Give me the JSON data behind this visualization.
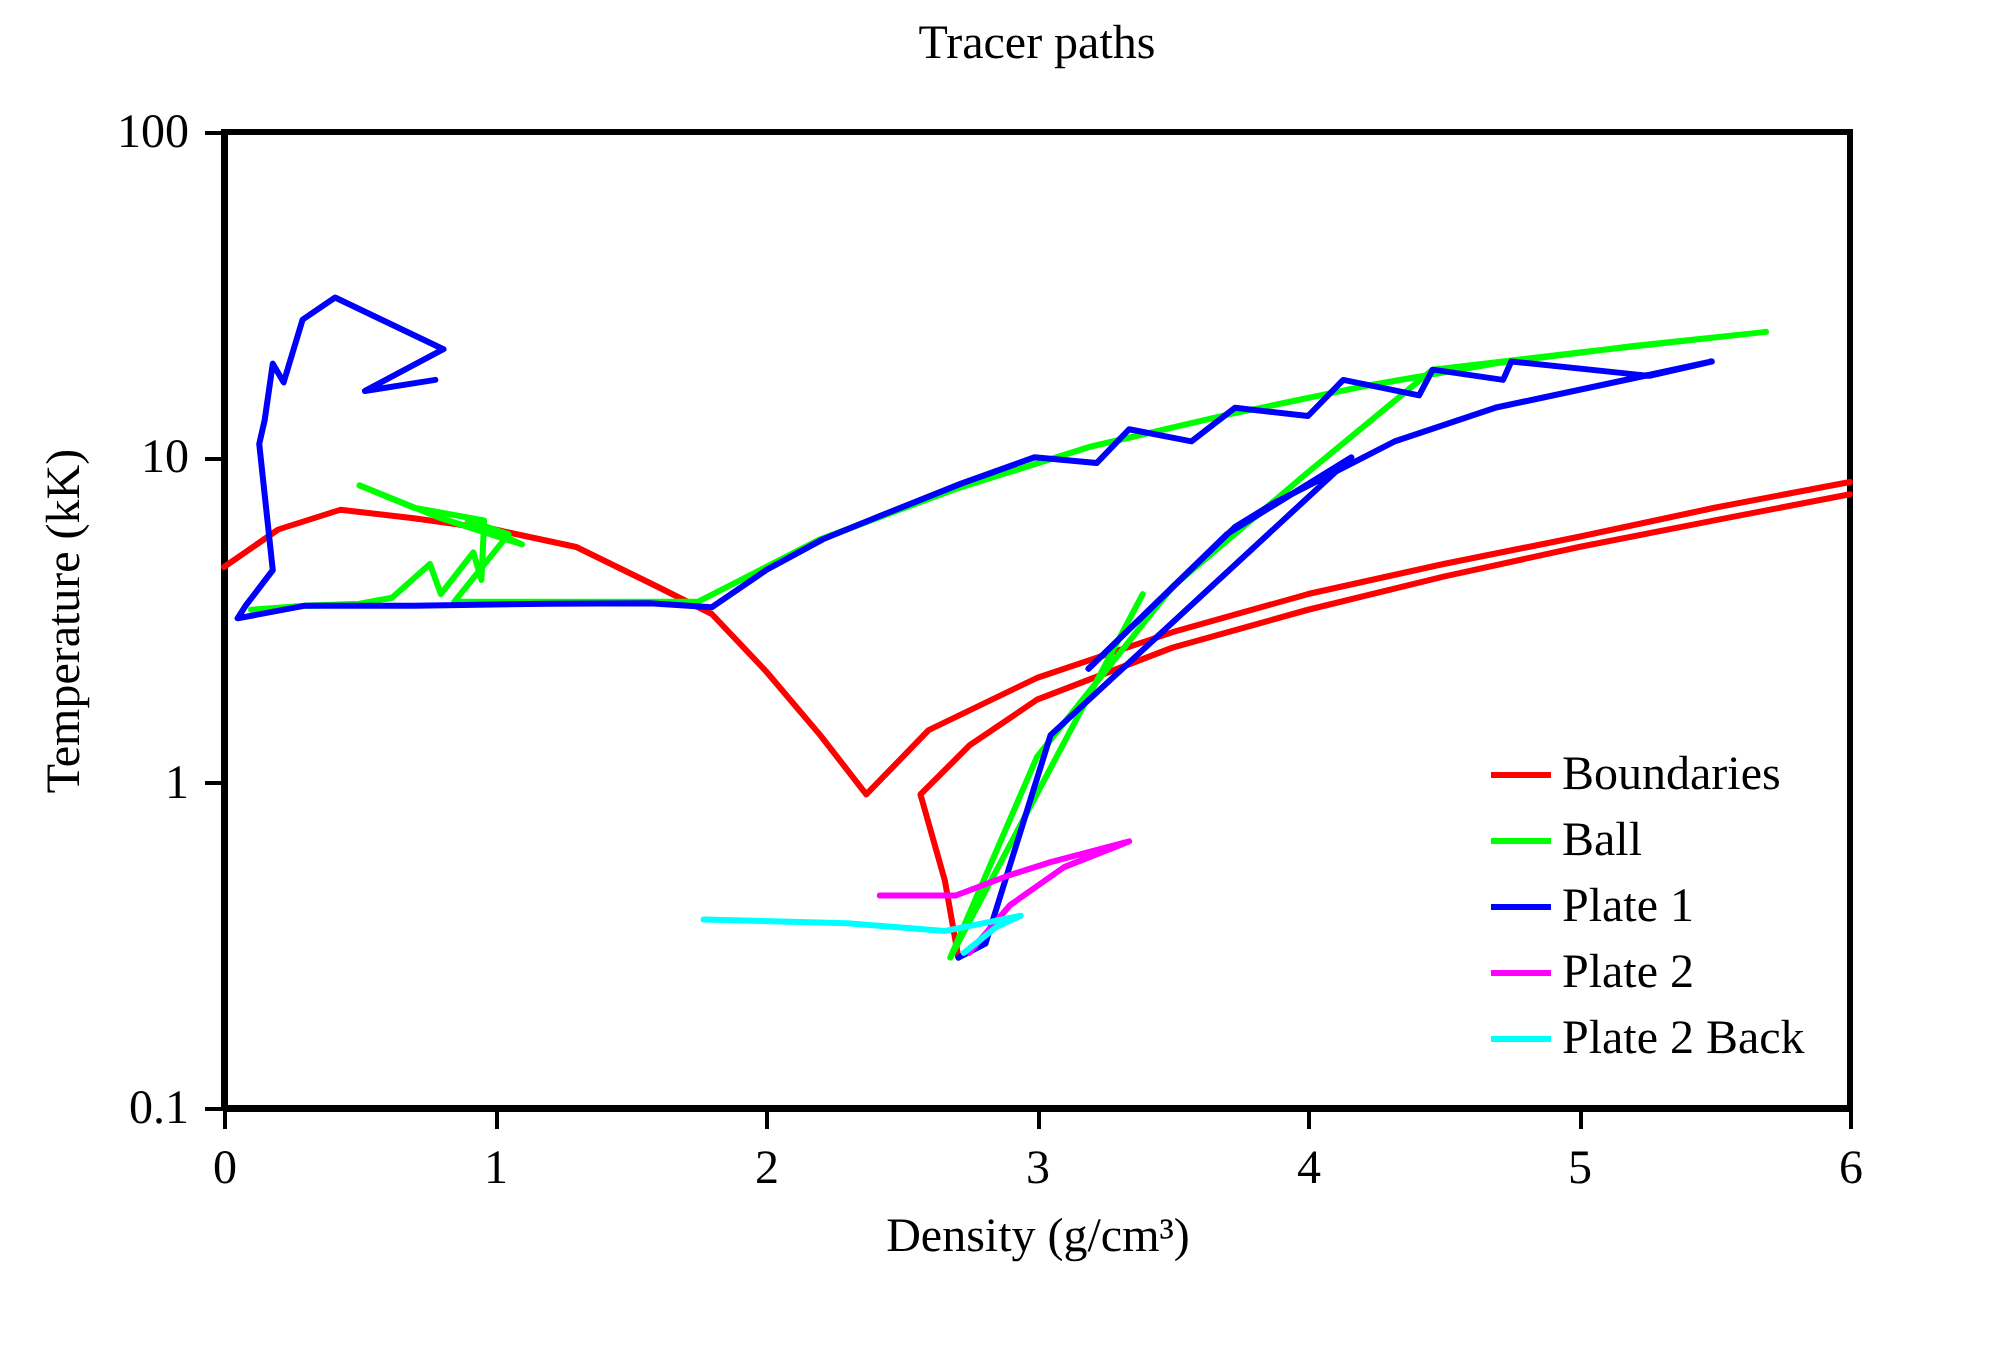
{
  "chart_data": {
    "type": "line",
    "title": "Tracer paths",
    "xlabel": "Density (g/cm³)",
    "ylabel": "Temperature (kK)",
    "xlim": [
      0,
      6
    ],
    "xticks": [
      0,
      1,
      2,
      3,
      4,
      5,
      6
    ],
    "ylim": [
      0.1,
      100
    ],
    "yticks": [
      0.1,
      1,
      10,
      100
    ],
    "log": "y",
    "legend": "bottom right",
    "series": [
      {
        "name": "Boundaries",
        "color": "#ff0000",
        "x": [
          0,
          0.2,
          0.43,
          0.7,
          1.0,
          1.3,
          1.6,
          1.8,
          2.0,
          2.2,
          2.37,
          2.6,
          3.0,
          3.5,
          4,
          4.5,
          5,
          5.5,
          6,
          null,
          2.71,
          2.66,
          2.57,
          2.75,
          3.0,
          3.5,
          4,
          4.5,
          5,
          5.5,
          6
        ],
        "values": [
          4.6,
          6.0,
          6.9,
          6.5,
          6.0,
          5.3,
          4.0,
          3.3,
          2.2,
          1.4,
          0.92,
          1.45,
          2.1,
          2.9,
          3.8,
          4.7,
          5.7,
          7.0,
          8.4,
          null,
          0.29,
          0.5,
          0.92,
          1.3,
          1.8,
          2.6,
          3.4,
          4.3,
          5.3,
          6.4,
          7.7
        ]
      },
      {
        "name": "Ball",
        "color": "#00ff00",
        "x": [
          0.1,
          0.3,
          0.5,
          0.62,
          0.76,
          0.8,
          0.92,
          0.95,
          0.96,
          0.7,
          0.5,
          0.8,
          1.1,
          0.9,
          1.05,
          0.85,
          1.3,
          1.75,
          2.2,
          2.7,
          3.2,
          3.7,
          4.2,
          4.7,
          5.2,
          5.69,
          5.0,
          4.46,
          4.0,
          3.5,
          3.0,
          2.68,
          3.39
        ],
        "values": [
          3.4,
          3.5,
          3.55,
          3.7,
          4.7,
          3.8,
          5.1,
          4.2,
          6.4,
          7.0,
          8.2,
          6.5,
          5.4,
          6.4,
          5.8,
          3.6,
          3.6,
          3.6,
          5.6,
          8.0,
          10.8,
          13.5,
          16.5,
          19.5,
          22,
          24.3,
          21,
          18.6,
          9,
          4,
          1.2,
          0.29,
          3.8
        ]
      },
      {
        "name": "Plate 1",
        "color": "#0000ff",
        "x": [
          0.78,
          0.52,
          0.81,
          0.41,
          0.29,
          0.22,
          0.18,
          0.15,
          0.13,
          0.18,
          0.08,
          0.05,
          0.3,
          0.7,
          1.2,
          1.57,
          1.8,
          2.0,
          2.21,
          2.42,
          2.72,
          2.99,
          3.22,
          3.34,
          3.57,
          3.73,
          4.0,
          4.13,
          4.41,
          4.46,
          4.72,
          4.75,
          5.26,
          5.49,
          4.69,
          4.32,
          3.87,
          3.73,
          3.19,
          3.7,
          4.16,
          3.05,
          2.81,
          2.71
        ],
        "values": [
          17.3,
          16,
          21.5,
          31,
          26.5,
          17,
          19.4,
          13,
          11,
          4.5,
          3.5,
          3.2,
          3.5,
          3.5,
          3.55,
          3.56,
          3.46,
          4.5,
          5.6,
          6.6,
          8.3,
          10,
          9.6,
          12.2,
          11.2,
          14.2,
          13.4,
          17.3,
          15.5,
          18.6,
          17.3,
          19.7,
          17.8,
          19.7,
          14.2,
          11.2,
          7.2,
          6.1,
          2.24,
          5.8,
          10,
          1.4,
          0.32,
          0.29
        ]
      },
      {
        "name": "Plate 2",
        "color": "#ff00ff",
        "x": [
          2.42,
          2.6,
          2.7,
          2.9,
          3.05,
          3.34,
          3.1,
          2.9,
          2.75
        ],
        "values": [
          0.45,
          0.45,
          0.45,
          0.52,
          0.57,
          0.66,
          0.55,
          0.42,
          0.3
        ]
      },
      {
        "name": "Plate 2 Back",
        "color": "#00ffff",
        "x": [
          1.77,
          2.3,
          2.66,
          2.94,
          2.85,
          2.73
        ],
        "values": [
          0.38,
          0.37,
          0.35,
          0.39,
          0.36,
          0.3
        ]
      }
    ]
  }
}
